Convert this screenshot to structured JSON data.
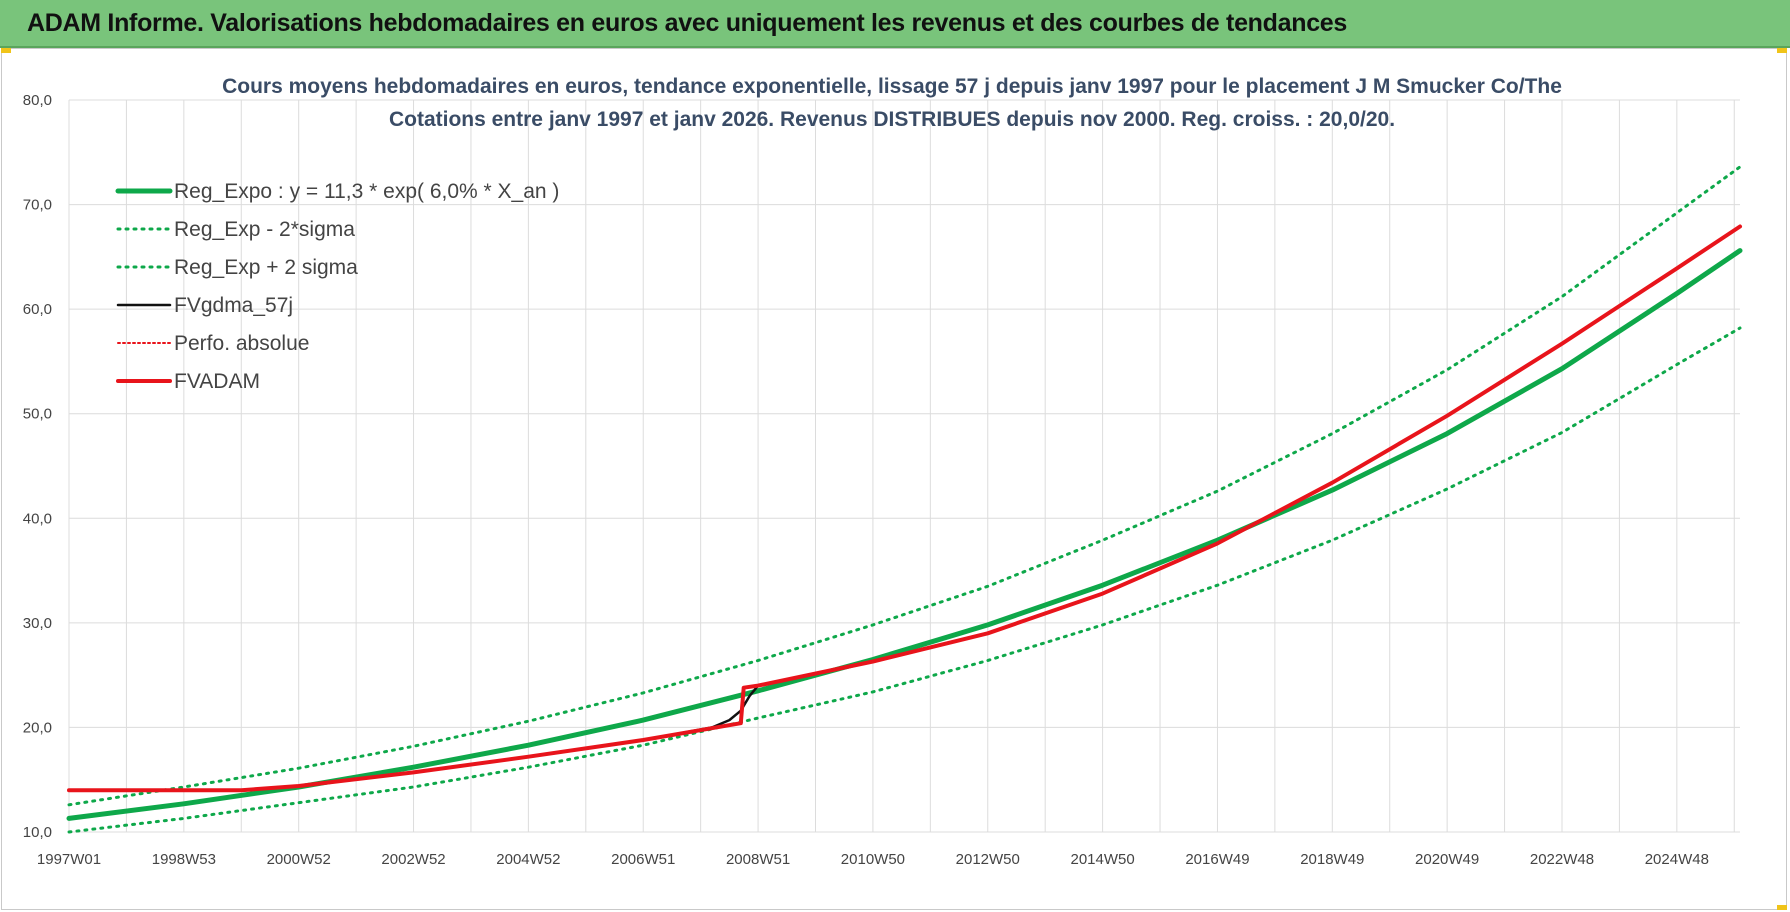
{
  "banner": {
    "title": "ADAM Informe. Valorisations hebdomadaires en euros avec uniquement les revenus et des courbes de tendances"
  },
  "colors": {
    "banner": "#79c47b",
    "green": "#0ea84a",
    "red": "#e8141b",
    "black": "#111111",
    "grid": "#dcdcdc"
  },
  "chart_data": {
    "type": "line",
    "title": [
      "Cours moyens hebdomadaires en euros, tendance exponentielle, lissage 57 j depuis janv 1997 pour le placement J M Smucker Co/The",
      "Cotations entre janv 1997 et janv 2026. Revenus DISTRIBUES depuis nov 2000.  Reg. croiss. : 20,0/20."
    ],
    "ylim": [
      10,
      80
    ],
    "xlim": [
      1997.0,
      2026.1
    ],
    "y_ticks": [
      "10,0",
      "20,0",
      "30,0",
      "40,0",
      "50,0",
      "60,0",
      "70,0",
      "80,0"
    ],
    "y_tick_values": [
      10,
      20,
      30,
      40,
      50,
      60,
      70,
      80
    ],
    "x_tick_labels": [
      "1997W01",
      "1998W53",
      "2000W52",
      "2002W52",
      "2004W52",
      "2006W51",
      "2008W51",
      "2010W50",
      "2012W50",
      "2014W50",
      "2016W49",
      "2018W49",
      "2020W49",
      "2022W48",
      "2024W48"
    ],
    "x_tick_values": [
      1997.0,
      1999.0,
      2001.0,
      2003.0,
      2005.0,
      2007.0,
      2009.0,
      2011.0,
      2013.0,
      2015.0,
      2017.0,
      2019.0,
      2021.0,
      2023.0,
      2025.0
    ],
    "grid": true,
    "legend_position": "top-left",
    "series": [
      {
        "name": "Reg_Expo : y = 11,3 * exp( 6,0% *  X_an )",
        "style": "solid-thick",
        "color": "#0ea84a",
        "x": [
          1997.0,
          1999.0,
          2001.0,
          2003.0,
          2005.0,
          2007.0,
          2009.0,
          2011.0,
          2013.0,
          2015.0,
          2017.0,
          2019.0,
          2021.0,
          2023.0,
          2025.0,
          2026.1
        ],
        "y": [
          11.3,
          12.7,
          14.3,
          16.2,
          18.3,
          20.7,
          23.5,
          26.5,
          29.8,
          33.6,
          37.9,
          42.7,
          48.1,
          54.3,
          61.5,
          65.6
        ]
      },
      {
        "name": "Reg_Exp - 2*sigma",
        "style": "dotted",
        "color": "#0ea84a",
        "x": [
          1997.0,
          1999.0,
          2001.0,
          2003.0,
          2005.0,
          2007.0,
          2009.0,
          2011.0,
          2013.0,
          2015.0,
          2017.0,
          2019.0,
          2021.0,
          2023.0,
          2025.0,
          2026.1
        ],
        "y": [
          10.0,
          11.3,
          12.8,
          14.3,
          16.2,
          18.3,
          20.9,
          23.4,
          26.4,
          29.8,
          33.6,
          37.9,
          42.8,
          48.2,
          54.7,
          58.2
        ]
      },
      {
        "name": "Reg_Exp + 2 sigma",
        "style": "dotted",
        "color": "#0ea84a",
        "x": [
          1997.0,
          1999.0,
          2001.0,
          2003.0,
          2005.0,
          2007.0,
          2009.0,
          2011.0,
          2013.0,
          2015.0,
          2017.0,
          2019.0,
          2021.0,
          2023.0,
          2025.0,
          2026.1
        ],
        "y": [
          12.6,
          14.3,
          16.1,
          18.2,
          20.6,
          23.3,
          26.4,
          29.8,
          33.5,
          37.9,
          42.6,
          48.1,
          54.2,
          61.2,
          69.2,
          73.6
        ]
      },
      {
        "name": "FVgdma_57j",
        "style": "solid",
        "color": "#111111",
        "x": [
          1997.0,
          1999.0,
          2000.0,
          2001.0,
          2003.0,
          2005.0,
          2007.0,
          2008.2,
          2008.5,
          2008.7,
          2008.85,
          2009.0,
          2011.0,
          2013.0,
          2015.0,
          2017.0,
          2019.0,
          2021.0,
          2023.0,
          2025.0,
          2026.1
        ],
        "y": [
          14.0,
          14.0,
          14.0,
          14.4,
          15.7,
          17.2,
          18.8,
          20.0,
          20.7,
          21.6,
          23.0,
          24.0,
          26.3,
          29.0,
          32.8,
          37.6,
          43.4,
          49.8,
          56.7,
          63.9,
          67.9
        ]
      },
      {
        "name": "Perfo. absolue",
        "style": "dotted",
        "color": "#e8141b",
        "x": [
          1997.0,
          1999.0,
          2000.0,
          2001.0,
          2003.0,
          2005.0,
          2007.0,
          2008.7,
          2008.75,
          2009.0,
          2011.0,
          2013.0,
          2015.0,
          2017.0,
          2019.0,
          2021.0,
          2023.0,
          2025.0,
          2026.1
        ],
        "y": [
          14.0,
          14.0,
          14.0,
          14.4,
          15.7,
          17.2,
          18.8,
          20.4,
          23.8,
          24.0,
          26.3,
          29.0,
          32.8,
          37.6,
          43.4,
          49.8,
          56.7,
          63.9,
          67.9
        ]
      },
      {
        "name": "FVADAM",
        "style": "solid-thick",
        "color": "#e8141b",
        "x": [
          1997.0,
          1999.0,
          2000.0,
          2001.0,
          2003.0,
          2005.0,
          2007.0,
          2008.7,
          2008.75,
          2009.0,
          2011.0,
          2013.0,
          2015.0,
          2017.0,
          2019.0,
          2021.0,
          2023.0,
          2025.0,
          2026.1
        ],
        "y": [
          14.0,
          14.0,
          14.0,
          14.4,
          15.7,
          17.2,
          18.8,
          20.4,
          23.8,
          24.0,
          26.3,
          29.0,
          32.8,
          37.6,
          43.4,
          49.8,
          56.7,
          63.9,
          67.9
        ]
      }
    ]
  }
}
